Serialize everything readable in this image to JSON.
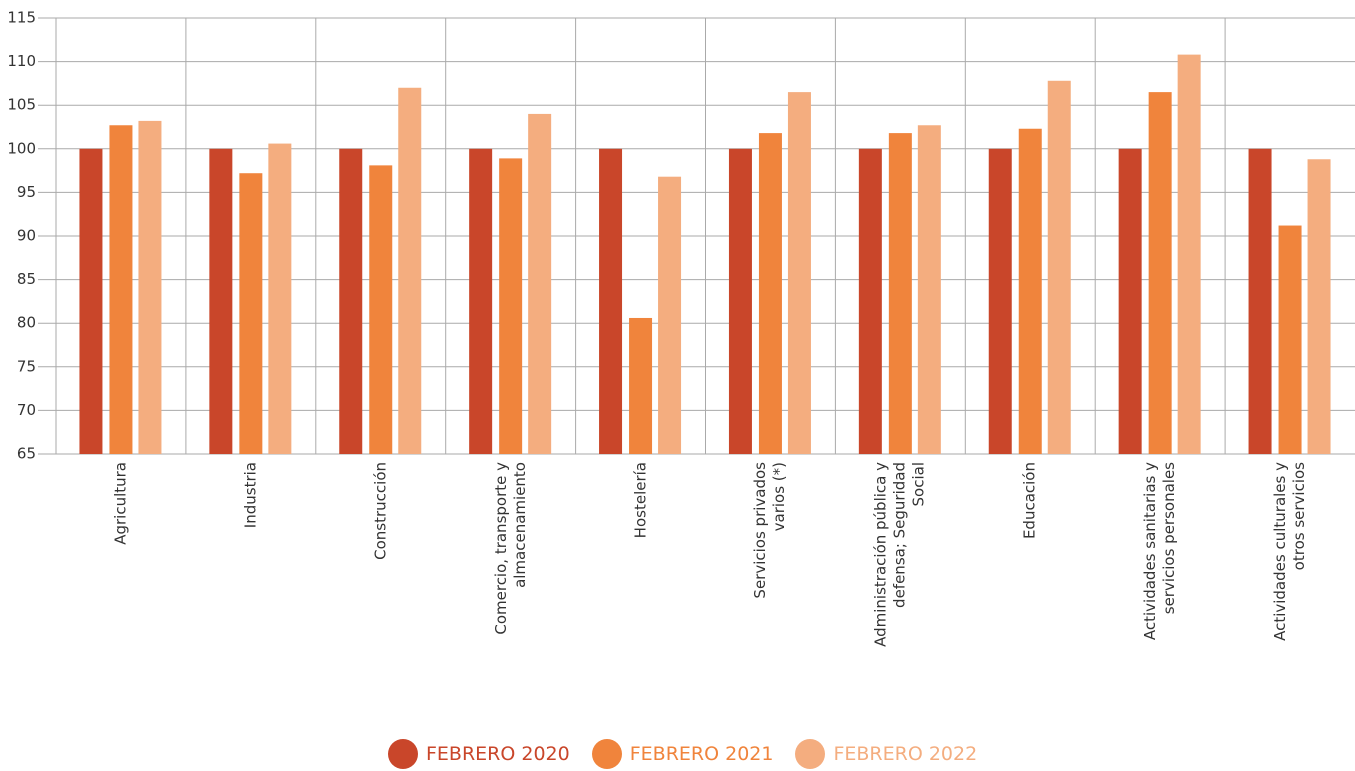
{
  "chart_data": {
    "type": "bar",
    "categories": [
      "Agricultura",
      "Industria",
      "Construcción",
      "Comercio, transporte y\nalmacenamiento",
      "Hostelería",
      "Servicios privados\nvarios (*)",
      "Administración pública y\ndefensa; Seguridad\nSocial",
      "Educación",
      "Actividades sanitarias y\nservicios personales",
      "Actividades culturales y\notros servicios"
    ],
    "series": [
      {
        "name": "FEBRERO 2020",
        "color": "#c9462a",
        "values": [
          100,
          100,
          100,
          100,
          100,
          100,
          100,
          100,
          100,
          100
        ]
      },
      {
        "name": "FEBRERO 2021",
        "color": "#f0843c",
        "values": [
          102.7,
          97.2,
          98.1,
          98.9,
          80.6,
          101.8,
          101.8,
          102.3,
          106.5,
          91.2
        ]
      },
      {
        "name": "FEBRERO 2022",
        "color": "#f4ad7f",
        "values": [
          103.2,
          100.6,
          107,
          104,
          96.8,
          106.5,
          102.7,
          107.8,
          110.8,
          98.8
        ]
      }
    ],
    "ylim": [
      65,
      115
    ],
    "yticks": [
      65,
      70,
      75,
      80,
      85,
      90,
      95,
      100,
      105,
      110,
      115
    ],
    "grid": true
  }
}
